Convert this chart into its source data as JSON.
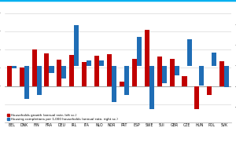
{
  "countries": [
    "BEL",
    "DNK",
    "FIN",
    "FRA",
    "DEU",
    "IRL",
    "ITA",
    "NLO",
    "NOR",
    "PRT",
    "ESP",
    "SWE",
    "SUI",
    "GBR",
    "CZE",
    "HUN",
    "POL",
    "SVK"
  ],
  "households_growth": [
    1.1,
    1.0,
    2.0,
    1.8,
    1.45,
    1.7,
    1.3,
    1.65,
    1.75,
    0.25,
    1.5,
    3.1,
    1.6,
    1.5,
    0.55,
    -1.25,
    -0.5,
    1.35
  ],
  "housing_completions": [
    -0.25,
    -3.2,
    -2.8,
    -0.7,
    -1.2,
    4.0,
    0.5,
    0.5,
    -3.5,
    -2.8,
    2.85,
    -4.2,
    -1.7,
    -0.9,
    2.6,
    -1.9,
    1.3,
    -2.1
  ],
  "red_color": "#c00000",
  "blue_color": "#1f6db5",
  "background_color": "#ffffff",
  "grid_color": "#d0d0d0",
  "legend_red": "Households growth (annual rate, left sc.)",
  "legend_blue": "Housing completions per 1,000 households (annual rate, right sc.)",
  "bar_width": 0.38,
  "ylim_left": [
    -2.0,
    4.2
  ],
  "ylim_right": [
    -5.5,
    5.5
  ],
  "top_line_color": "#00b0f0"
}
